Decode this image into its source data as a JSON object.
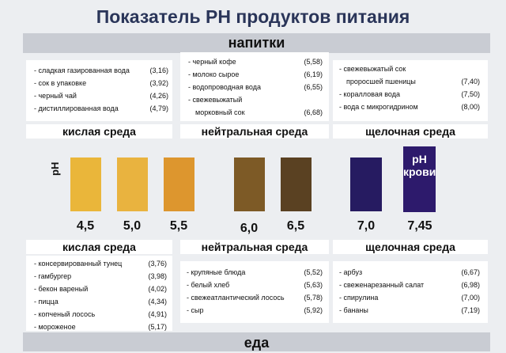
{
  "title": "Показатель РН продуктов питания",
  "top_band": "напитки",
  "bottom_band": "еда",
  "zones": {
    "acid": "кислая среда",
    "neutral": "нейтральная среда",
    "alkaline": "щелочная среда"
  },
  "ph_axis_label": "pH",
  "blood_label": [
    "pH",
    "крови"
  ],
  "drinks": {
    "acid": [
      {
        "name": "- сладкая газированная вода",
        "value": "(3,16)"
      },
      {
        "name": "- сок в упаковке",
        "value": "(3,92)"
      },
      {
        "name": "- черный чай",
        "value": "(4,26)"
      },
      {
        "name": "- дистиллированная вода",
        "value": "(4,79)"
      }
    ],
    "neutral": [
      {
        "name": "- черный кофе",
        "value": "(5,58)"
      },
      {
        "name": "- молоко сырое",
        "value": "(6,19)"
      },
      {
        "name": "- водопроводная вода",
        "value": "(6,55)"
      },
      {
        "name": "- свежевыжатый",
        "value": ""
      },
      {
        "name": "морковный сок",
        "value": "(6,68)"
      }
    ],
    "alkaline": [
      {
        "name": "- свежевыжатый сок",
        "value": ""
      },
      {
        "name": "проросшей пшеницы",
        "value": "(7,40)"
      },
      {
        "name": "- коралловая вода",
        "value": "(7,50)"
      },
      {
        "name": "- вода с микрогидрином",
        "value": "(8,00)"
      }
    ]
  },
  "food": {
    "acid": [
      {
        "name": "- консервированный тунец",
        "value": "(3,76)"
      },
      {
        "name": "- гамбургер",
        "value": "(3,98)"
      },
      {
        "name": "- бекон вареный",
        "value": "(4,02)"
      },
      {
        "name": "- пицца",
        "value": "(4,34)"
      },
      {
        "name": "- копченый лосось",
        "value": "(4,91)"
      },
      {
        "name": "- мороженое",
        "value": "(5,17)"
      }
    ],
    "neutral": [
      {
        "name": "- крупяные блюда",
        "value": "(5,52)"
      },
      {
        "name": "- белый хлеб",
        "value": "(5,63)"
      },
      {
        "name": "- свежеатлантический лосось",
        "value": "(5,78)"
      },
      {
        "name": "- сыр",
        "value": "(5,92)"
      }
    ],
    "alkaline": [
      {
        "name": "- арбуз",
        "value": "(6,67)"
      },
      {
        "name": "- свеженарезанный салат",
        "value": "(6,98)"
      },
      {
        "name": "- спирулина",
        "value": "(7,00)"
      },
      {
        "name": "- бананы",
        "value": "(7,19)"
      }
    ]
  },
  "swatches": [
    {
      "ph": "4,5",
      "color": "#eab63a"
    },
    {
      "ph": "5,0",
      "color": "#e9b33f"
    },
    {
      "ph": "5,5",
      "color": "#dd962e"
    },
    {
      "ph": "6,0",
      "color": "#7d5a26"
    },
    {
      "ph": "6,5",
      "color": "#5a4122"
    },
    {
      "ph": "7,0",
      "color": "#261b61"
    },
    {
      "ph": "7,45",
      "color": "#2d1a6c"
    }
  ]
}
